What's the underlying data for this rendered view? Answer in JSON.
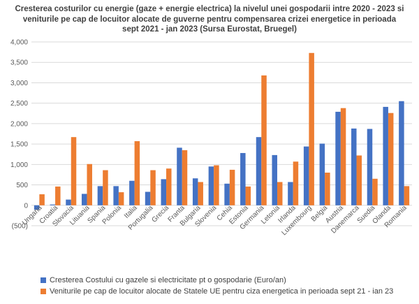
{
  "chart_data": {
    "type": "bar",
    "title": "Cresterea costurilor cu energie (gaze + energie electrica) la nivelul unei gospodarii intre 2020 - 2023 si veniturile pe cap de locuitor alocate de guverne pentru compensarea crizei energetice in perioada sept 2021 - jan 2023 (Sursa Eurostat, Bruegel)",
    "categories": [
      "Ungaria",
      "Croatia",
      "Slovacia",
      "Lituania",
      "Spania",
      "Polonia",
      "Italia",
      "Portugalia",
      "Grecia",
      "Franta",
      "Bulgaria",
      "Slovenia",
      "Cehia",
      "Estonia",
      "Germania",
      "Letonia",
      "Irlanda",
      "Luxembourg",
      "Belgia",
      "Austria",
      "Danemarca",
      "Suedia",
      "Olanda",
      "Romania"
    ],
    "series": [
      {
        "name": "Cresterea Costului cu gazele si electricitate pt o gospodarie (Euro/an)",
        "color": "#4472C4",
        "values": [
          -110,
          20,
          140,
          280,
          470,
          470,
          600,
          330,
          640,
          1410,
          660,
          950,
          530,
          1280,
          1670,
          1230,
          570,
          1440,
          1510,
          2290,
          1880,
          1870,
          2410,
          2550
        ]
      },
      {
        "name": "Veniturile pe cap de locuitor alocate de Statele UE pentru ciza energetica in perioada sept 21 - ian 23",
        "color": "#ED7D31",
        "values": [
          270,
          460,
          1670,
          1010,
          860,
          320,
          1570,
          860,
          900,
          1350,
          570,
          980,
          870,
          460,
          3180,
          570,
          1070,
          3730,
          800,
          2380,
          1220,
          650,
          2260,
          470
        ]
      }
    ],
    "ylim": [
      -500,
      4000
    ],
    "yticks": [
      -500,
      0,
      500,
      1000,
      1500,
      2000,
      2500,
      3000,
      3500,
      4000
    ],
    "ytick_labels": [
      "(500)",
      "0",
      "500",
      "1,000",
      "1,500",
      "2,000",
      "2,500",
      "3,000",
      "3,500",
      "4,000"
    ],
    "grid": true,
    "legend_position": "bottom"
  }
}
